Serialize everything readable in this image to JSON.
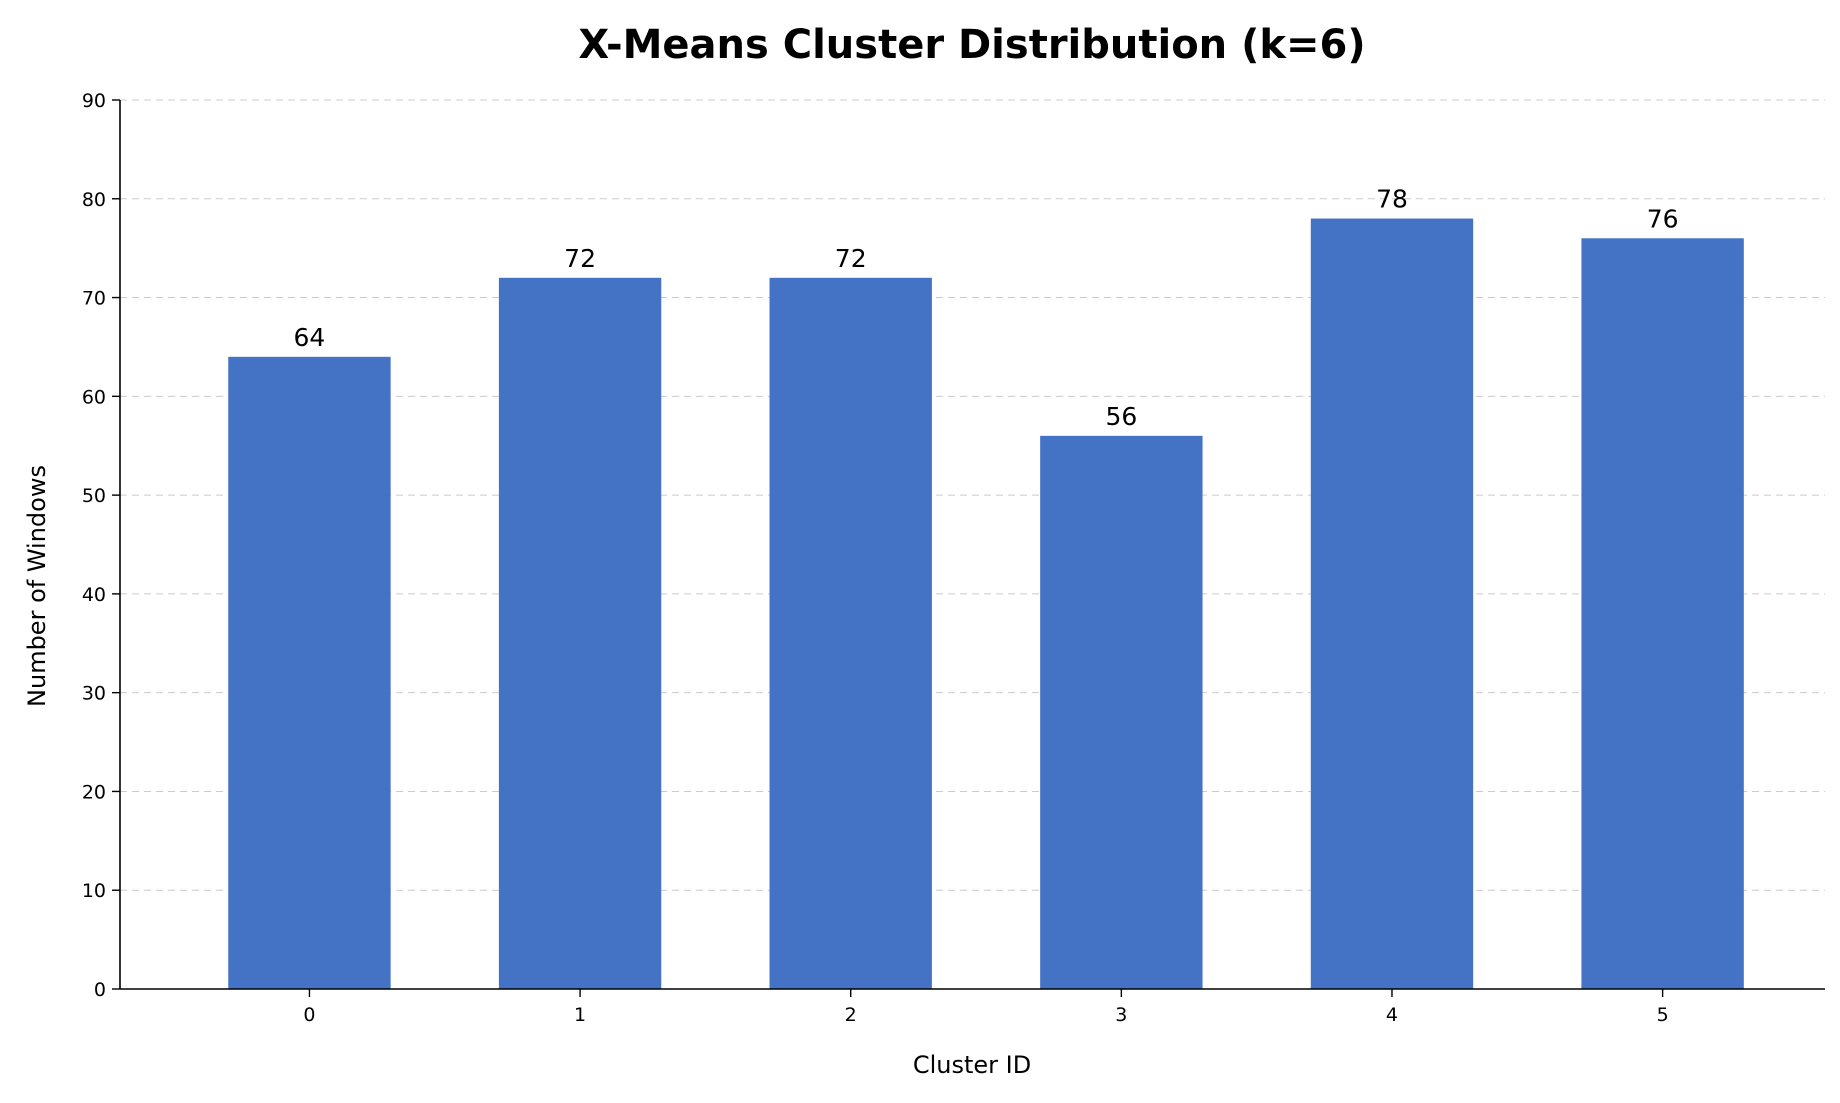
{
  "chart_data": {
    "type": "bar",
    "title": "X-Means Cluster Distribution (k=6)",
    "xlabel": "Cluster ID",
    "ylabel": "Number of Windows",
    "categories": [
      "0",
      "1",
      "2",
      "3",
      "4",
      "5"
    ],
    "values": [
      64,
      72,
      72,
      56,
      78,
      76
    ],
    "data_labels": [
      "64",
      "72",
      "72",
      "56",
      "78",
      "76"
    ],
    "ylim": [
      0,
      90
    ],
    "yticks": [
      0,
      10,
      20,
      30,
      40,
      50,
      60,
      70,
      80,
      90
    ],
    "ytick_labels": [
      "0",
      "10",
      "20",
      "30",
      "40",
      "50",
      "60",
      "70",
      "80",
      "90"
    ],
    "grid": "y-dashed",
    "legend": "none",
    "bar_color": "#4472c4",
    "grid_color": "#cccccc"
  }
}
